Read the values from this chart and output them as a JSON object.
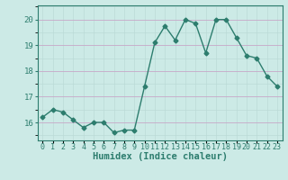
{
  "x": [
    0,
    1,
    2,
    3,
    4,
    5,
    6,
    7,
    8,
    9,
    10,
    11,
    12,
    13,
    14,
    15,
    16,
    17,
    18,
    19,
    20,
    21,
    22,
    23
  ],
  "y": [
    16.2,
    16.5,
    16.4,
    16.1,
    15.8,
    16.0,
    16.0,
    15.6,
    15.7,
    15.7,
    17.4,
    19.1,
    19.75,
    19.2,
    20.0,
    19.85,
    18.7,
    20.0,
    20.0,
    19.3,
    18.6,
    18.5,
    17.8,
    17.4
  ],
  "line_color": "#2d7d6e",
  "marker": "D",
  "markersize": 2.5,
  "linewidth": 1.0,
  "xlabel": "Humidex (Indice chaleur)",
  "xlim": [
    -0.5,
    23.5
  ],
  "ylim": [
    15.3,
    20.55
  ],
  "yticks": [
    16,
    17,
    18,
    19,
    20
  ],
  "xtick_labels": [
    "0",
    "1",
    "2",
    "3",
    "4",
    "5",
    "6",
    "7",
    "8",
    "9",
    "10",
    "11",
    "12",
    "13",
    "14",
    "15",
    "16",
    "17",
    "18",
    "19",
    "20",
    "21",
    "22",
    "23"
  ],
  "bg_color": "#cceae6",
  "grid_color_h": "#c8a8c8",
  "grid_color_v": "#b8d8d4",
  "xlabel_fontsize": 7.5,
  "tick_fontsize": 6.5
}
